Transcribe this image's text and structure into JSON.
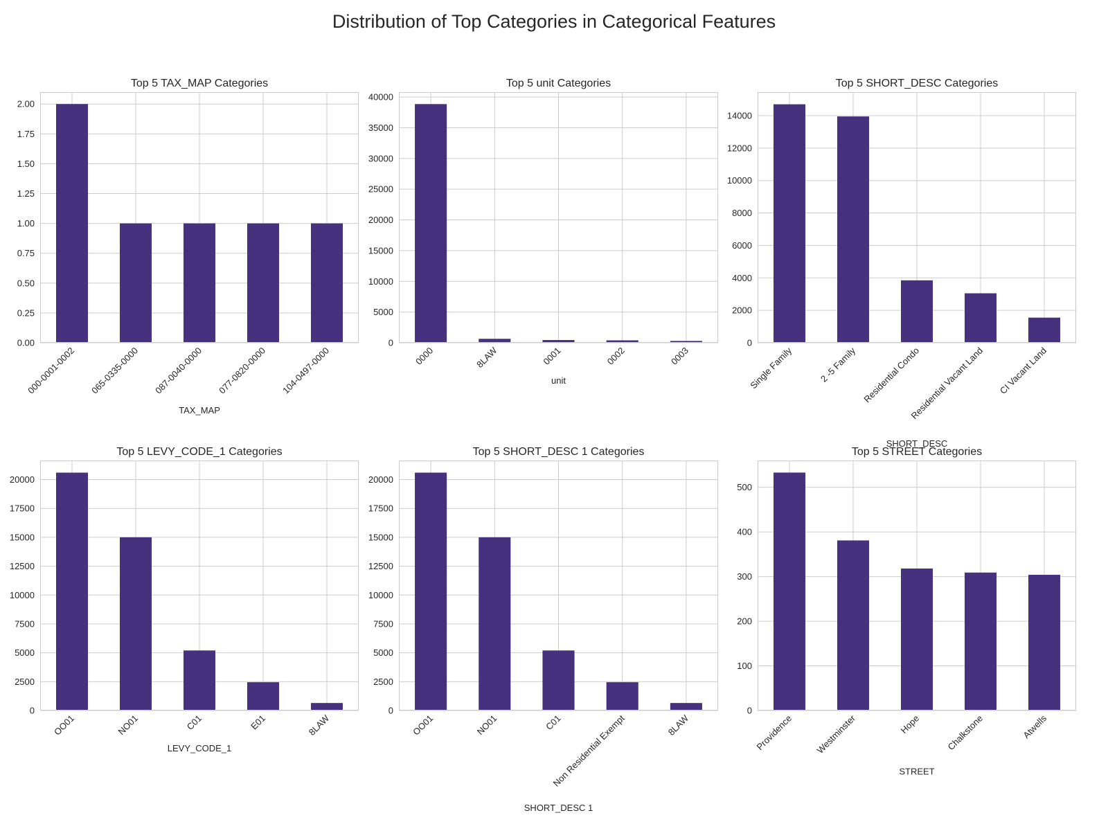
{
  "figure": {
    "title": "Distribution of Top Categories in Categorical Features"
  },
  "colors": {
    "bar": "#46317e",
    "grid": "#cccccc",
    "frame": "#cccccc",
    "text": "#262626"
  },
  "chart_data": [
    {
      "type": "bar",
      "title": "Top 5 TAX_MAP Categories",
      "xlabel": "TAX_MAP",
      "ylabel": "",
      "categories": [
        "000-0001-0002",
        "065-0335-0000",
        "087-0040-0000",
        "077-0820-0000",
        "104-0497-0000"
      ],
      "values": [
        2,
        1,
        1,
        1,
        1
      ],
      "ylim": [
        0,
        2.1
      ],
      "yticks": [
        0,
        0.25,
        0.5,
        0.75,
        1.0,
        1.25,
        1.5,
        1.75,
        2.0
      ],
      "ytick_labels": [
        "0.00",
        "0.25",
        "0.50",
        "0.75",
        "1.00",
        "1.25",
        "1.50",
        "1.75",
        "2.00"
      ],
      "grid": true,
      "legend": "none"
    },
    {
      "type": "bar",
      "title": "Top 5 unit Categories",
      "xlabel": "unit",
      "ylabel": "",
      "categories": [
        "0000",
        "8LAW",
        "0001",
        "0002",
        "0003"
      ],
      "values": [
        38850,
        650,
        450,
        400,
        300
      ],
      "ylim": [
        0,
        40800
      ],
      "yticks": [
        0,
        5000,
        10000,
        15000,
        20000,
        25000,
        30000,
        35000,
        40000
      ],
      "ytick_labels": [
        "0",
        "5000",
        "10000",
        "15000",
        "20000",
        "25000",
        "30000",
        "35000",
        "40000"
      ],
      "grid": true,
      "legend": "none"
    },
    {
      "type": "bar",
      "title": "Top 5 SHORT_DESC Categories",
      "xlabel": "SHORT_DESC",
      "ylabel": "",
      "categories": [
        "Single Family",
        "2 -5 Family",
        "Residential Condo",
        "Residential Vacant Land",
        "CI Vacant Land"
      ],
      "values": [
        14700,
        13950,
        3850,
        3050,
        1550
      ],
      "ylim": [
        0,
        15450
      ],
      "yticks": [
        0,
        2000,
        4000,
        6000,
        8000,
        10000,
        12000,
        14000
      ],
      "ytick_labels": [
        "0",
        "2000",
        "4000",
        "6000",
        "8000",
        "10000",
        "12000",
        "14000"
      ],
      "grid": true,
      "legend": "none"
    },
    {
      "type": "bar",
      "title": "Top 5 LEVY_CODE_1 Categories",
      "xlabel": "LEVY_CODE_1",
      "ylabel": "",
      "categories": [
        "OO01",
        "NO01",
        "C01",
        "E01",
        "8LAW"
      ],
      "values": [
        20600,
        15000,
        5200,
        2450,
        650
      ],
      "ylim": [
        0,
        21650
      ],
      "yticks": [
        0,
        2500,
        5000,
        7500,
        10000,
        12500,
        15000,
        17500,
        20000
      ],
      "ytick_labels": [
        "0",
        "2500",
        "5000",
        "7500",
        "10000",
        "12500",
        "15000",
        "17500",
        "20000"
      ],
      "grid": true,
      "legend": "none"
    },
    {
      "type": "bar",
      "title": "Top 5 SHORT_DESC 1 Categories",
      "xlabel": "SHORT_DESC 1",
      "ylabel": "",
      "categories": [
        "OO01",
        "NO01",
        "C01",
        "Non Residential Exempt",
        "8LAW"
      ],
      "values": [
        20600,
        15000,
        5200,
        2450,
        650
      ],
      "ylim": [
        0,
        21650
      ],
      "yticks": [
        0,
        2500,
        5000,
        7500,
        10000,
        12500,
        15000,
        17500,
        20000
      ],
      "ytick_labels": [
        "0",
        "2500",
        "5000",
        "7500",
        "10000",
        "12500",
        "15000",
        "17500",
        "20000"
      ],
      "grid": true,
      "legend": "none"
    },
    {
      "type": "bar",
      "title": "Top 5 STREET Categories",
      "xlabel": "STREET",
      "ylabel": "",
      "categories": [
        "Providence",
        "Westminster",
        "Hope",
        "Chalkstone",
        "Atwells"
      ],
      "values": [
        533,
        381,
        318,
        309,
        304
      ],
      "ylim": [
        0,
        560
      ],
      "yticks": [
        0,
        100,
        200,
        300,
        400,
        500
      ],
      "ytick_labels": [
        "0",
        "100",
        "200",
        "300",
        "400",
        "500"
      ],
      "grid": true,
      "legend": "none"
    }
  ]
}
